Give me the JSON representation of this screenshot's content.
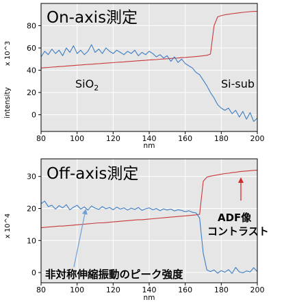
{
  "chart_data": [
    {
      "type": "line",
      "title": "On-axis測定",
      "xlabel": "nm",
      "ylabel": "intensity",
      "y_multiplier": "x 10^3",
      "xlim": [
        80,
        200
      ],
      "ylim": [
        -15,
        100
      ],
      "xticks": [
        80,
        100,
        120,
        140,
        160,
        180,
        200
      ],
      "yticks": [
        0,
        20,
        40,
        60,
        80
      ],
      "grid": true,
      "plot_background": "#e6e6e6",
      "grid_color": "#ffffff",
      "x": [
        80,
        82,
        84,
        86,
        88,
        90,
        92,
        94,
        96,
        98,
        100,
        102,
        104,
        106,
        108,
        110,
        112,
        114,
        116,
        118,
        120,
        122,
        124,
        126,
        128,
        130,
        132,
        134,
        136,
        138,
        140,
        142,
        144,
        146,
        148,
        150,
        152,
        154,
        156,
        158,
        160,
        162,
        164,
        166,
        168,
        170,
        172,
        174,
        176,
        178,
        180,
        182,
        184,
        186,
        188,
        190,
        192,
        194,
        196,
        198,
        200
      ],
      "series": [
        {
          "color": "#c8383a",
          "values": [
            42.0,
            42.3,
            42.5,
            42.8,
            43.0,
            43.3,
            43.5,
            43.8,
            44.0,
            44.2,
            44.5,
            44.7,
            45.0,
            45.2,
            45.4,
            45.7,
            45.9,
            46.1,
            46.4,
            46.6,
            46.8,
            47.1,
            47.3,
            47.5,
            47.8,
            48.0,
            48.2,
            48.5,
            48.7,
            48.9,
            49.2,
            49.4,
            49.6,
            49.9,
            50.1,
            50.3,
            50.6,
            50.8,
            51.0,
            51.3,
            51.5,
            51.8,
            52.0,
            52.3,
            52.6,
            53.0,
            53.4,
            54.5,
            80.0,
            88.0,
            89.0,
            89.8,
            90.3,
            90.8,
            91.2,
            91.6,
            92.0,
            92.3,
            92.6,
            92.8,
            93.0
          ]
        },
        {
          "color": "#3b7cc2",
          "values": [
            52,
            57,
            54,
            59,
            55,
            58,
            53,
            60,
            56,
            62,
            55,
            58,
            54,
            57,
            63,
            56,
            59,
            55,
            60,
            57,
            55,
            58,
            56,
            54,
            57,
            55,
            58,
            53,
            56,
            54,
            57,
            55,
            52,
            54,
            51,
            53,
            48,
            52,
            47,
            50,
            46,
            44,
            42,
            38,
            36,
            31,
            26,
            20,
            15,
            9,
            6,
            4,
            6,
            1,
            4,
            -2,
            3,
            -4,
            2,
            -6,
            -3
          ]
        }
      ],
      "annotations": {
        "sio2_text": "SiO",
        "sio2_subscript": "2",
        "si_sub_text": "Si-sub"
      }
    },
    {
      "type": "line",
      "title": "Off-axis測定",
      "xlabel": "nm",
      "y_multiplier": "x 10^4",
      "xlim": [
        80,
        200
      ],
      "ylim": [
        -3.2,
        35.5
      ],
      "xticks": [
        80,
        100,
        120,
        140,
        160,
        180,
        200
      ],
      "yticks": [
        0,
        10,
        20,
        30
      ],
      "grid": true,
      "plot_background": "#e6e6e6",
      "grid_color": "#ffffff",
      "x": [
        80,
        82,
        84,
        86,
        88,
        90,
        92,
        94,
        96,
        98,
        100,
        102,
        104,
        106,
        108,
        110,
        112,
        114,
        116,
        118,
        120,
        122,
        124,
        126,
        128,
        130,
        132,
        134,
        136,
        138,
        140,
        142,
        144,
        146,
        148,
        150,
        152,
        154,
        156,
        158,
        160,
        162,
        164,
        166,
        168,
        170,
        172,
        174,
        176,
        178,
        180,
        182,
        184,
        186,
        188,
        190,
        192,
        194,
        196,
        198,
        200
      ],
      "series": [
        {
          "color": "#c8383a",
          "values": [
            14.0,
            14.1,
            14.2,
            14.3,
            14.4,
            14.5,
            14.5,
            14.6,
            14.7,
            14.8,
            14.9,
            15.0,
            15.1,
            15.2,
            15.3,
            15.4,
            15.5,
            15.5,
            15.6,
            15.7,
            15.8,
            15.9,
            16.0,
            16.1,
            16.2,
            16.3,
            16.4,
            16.5,
            16.5,
            16.6,
            16.7,
            16.8,
            16.9,
            17.0,
            17.1,
            17.2,
            17.3,
            17.4,
            17.5,
            17.6,
            17.7,
            17.8,
            17.9,
            18.0,
            18.2,
            28.5,
            29.8,
            30.1,
            30.3,
            30.5,
            30.7,
            30.9,
            31.0,
            31.2,
            31.3,
            31.5,
            31.6,
            31.7,
            31.8,
            31.9,
            32.0
          ]
        },
        {
          "color": "#3b7cc2",
          "values": [
            21.5,
            22.3,
            20.6,
            21.0,
            19.8,
            20.9,
            20.2,
            21.2,
            19.6,
            20.4,
            21.0,
            19.8,
            20.5,
            19.5,
            20.8,
            20.1,
            19.7,
            20.6,
            19.9,
            20.3,
            19.6,
            20.4,
            19.8,
            20.2,
            19.5,
            20.1,
            19.7,
            20.3,
            19.4,
            19.9,
            20.2,
            19.6,
            20.0,
            19.3,
            19.9,
            19.5,
            19.8,
            19.2,
            19.6,
            19.4,
            19.0,
            19.3,
            18.8,
            18.6,
            17.0,
            6.0,
            0.8,
            0.3,
            0.8,
            -0.2,
            0.6,
            0.1,
            0.9,
            -0.3,
            1.6,
            0.2,
            -0.1,
            0.5,
            0.2,
            1.5,
            0.3
          ]
        }
      ],
      "annotations": {
        "adf_line1": "ADF像",
        "adf_line2": "コントラスト",
        "adf_color": "#e02020",
        "adf_arrow_color": "#d42a2a",
        "peak_label": "非対称伸縮振動のピーク強度",
        "peak_color": "#2f5fa6",
        "peak_arrow_color": "#6f9fd8"
      }
    }
  ]
}
